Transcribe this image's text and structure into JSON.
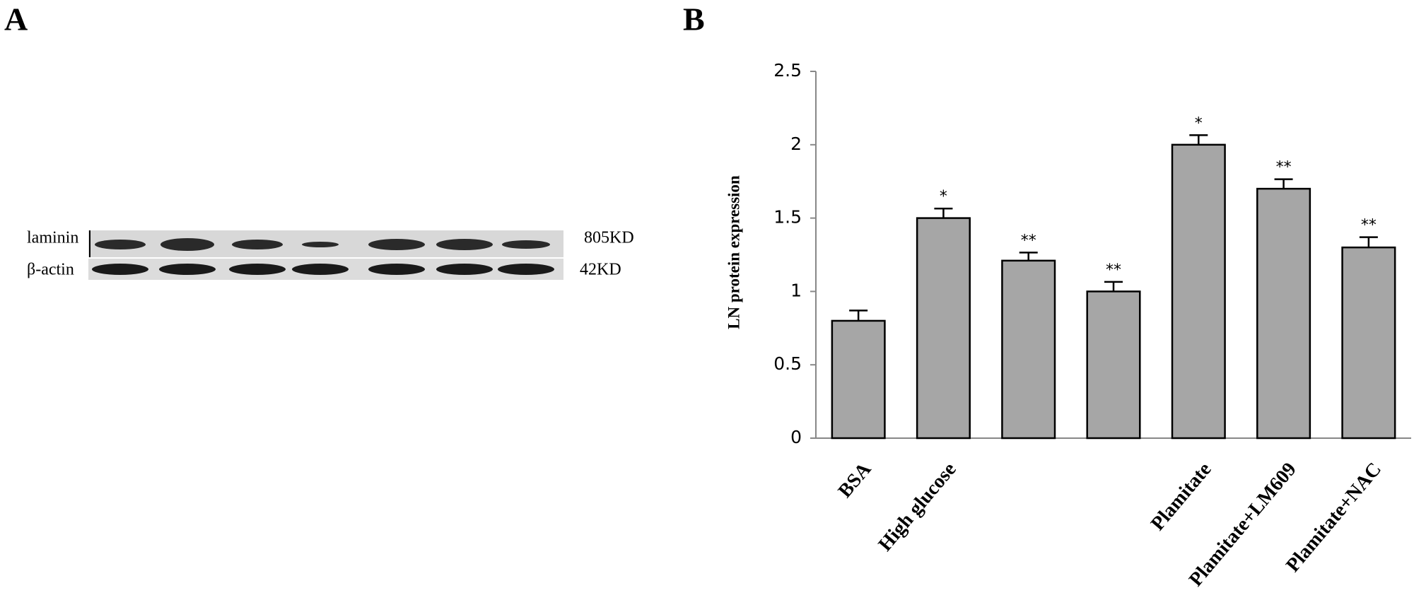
{
  "panel_labels": [
    "A",
    "B"
  ],
  "blot": {
    "rows": [
      {
        "label": "laminin",
        "size": "805KD"
      },
      {
        "label": "β-actin",
        "size": "42KD"
      }
    ]
  },
  "chart_data": {
    "type": "bar",
    "ylabel": "LN protein expression",
    "categories": [
      "BSA",
      "High glucose",
      null,
      null,
      "Plamitate",
      "Plamitate+LM609",
      "Plamitate+NAC"
    ],
    "values": [
      0.8,
      1.5,
      1.21,
      1.0,
      2.0,
      1.7,
      1.3
    ],
    "errors": [
      0.07,
      0.065,
      0.055,
      0.065,
      0.065,
      0.065,
      0.07
    ],
    "annotations": [
      null,
      "*",
      "**",
      "**",
      "*",
      "**",
      "**"
    ],
    "color": "#a6a6a6",
    "ylim": [
      0,
      2.5
    ],
    "yticks": [
      0,
      0.5,
      1,
      1.5,
      2,
      2.5
    ],
    "grid": false
  }
}
